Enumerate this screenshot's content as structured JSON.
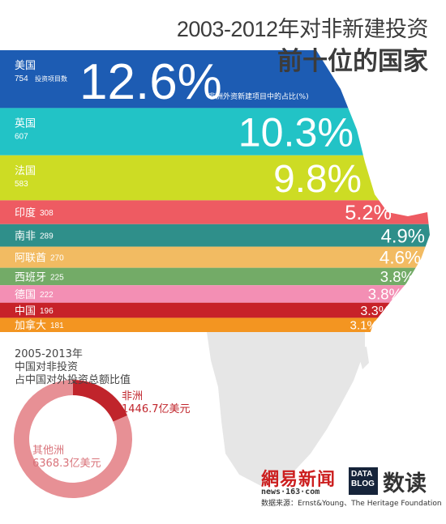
{
  "header": {
    "title_line1": "2003-2012年对非新建投资",
    "title_line2": "前十位的国家"
  },
  "chart_data": [
    {
      "type": "bar",
      "title": "2003-2012年对非新建投资前十位的国家",
      "value_note": "非洲外资新建项目中的占比(%)",
      "count_label": "投资项目数",
      "series": [
        {
          "name": "美国",
          "count": 754,
          "percent": 12.6,
          "percent_label": "12.6%",
          "color": "#1d5cb3"
        },
        {
          "name": "英国",
          "count": 607,
          "percent": 10.3,
          "percent_label": "10.3%",
          "color": "#22c3c6"
        },
        {
          "name": "法国",
          "count": 583,
          "percent": 9.8,
          "percent_label": "9.8%",
          "color": "#cddc24"
        },
        {
          "name": "印度",
          "count": 308,
          "percent": 5.2,
          "percent_label": "5.2%",
          "color": "#ee5b62"
        },
        {
          "name": "南非",
          "count": 289,
          "percent": 4.9,
          "percent_label": "4.9%",
          "color": "#2f8f8a"
        },
        {
          "name": "阿联酋",
          "count": 270,
          "percent": 4.6,
          "percent_label": "4.6%",
          "color": "#f2bb62"
        },
        {
          "name": "西班牙",
          "count": 225,
          "percent": 3.8,
          "percent_label": "3.8%",
          "color": "#73ab67"
        },
        {
          "name": "德国",
          "count": 222,
          "percent": 3.8,
          "percent_label": "3.8%",
          "color": "#f38fb4"
        },
        {
          "name": "中国",
          "count": 196,
          "percent": 3.3,
          "percent_label": "3.3%",
          "color": "#c72229"
        },
        {
          "name": "加拿大",
          "count": 181,
          "percent": 3.1,
          "percent_label": "3.1%",
          "color": "#f39521"
        }
      ]
    },
    {
      "type": "pie",
      "title_lines": [
        "2005-2013年",
        "中国对非投资",
        "占中国对外投资总额比值"
      ],
      "slices": [
        {
          "name": "非洲",
          "value": 1446.7,
          "label": "1446.7亿美元",
          "color": "#c0242b"
        },
        {
          "name": "其他洲",
          "value": 6368.3,
          "label": "6368.3亿美元",
          "color": "#e79095"
        }
      ]
    }
  ],
  "footer": {
    "logo_main": "網易新闻",
    "logo_url": "news·163·com",
    "datablog_line1": "DATA",
    "datablog_line2": "BLOG",
    "datablog_name": "数读",
    "source": "数据来源：Ernst&Young、The Heritage Foundation"
  }
}
